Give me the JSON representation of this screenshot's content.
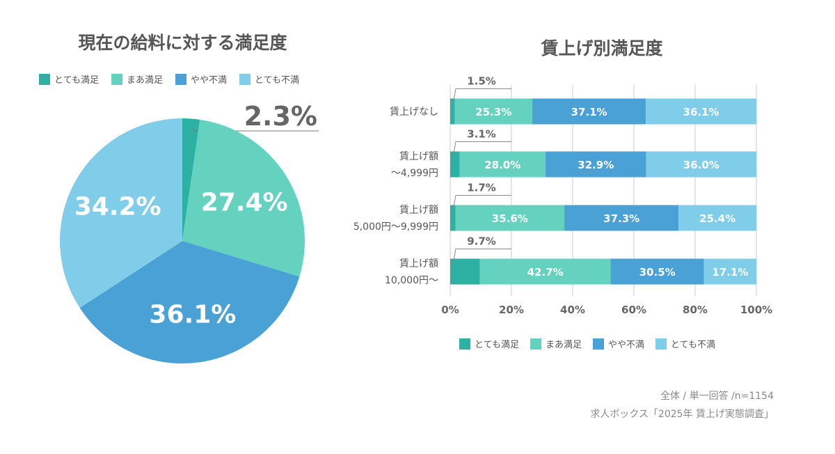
{
  "colors": {
    "very_satisfied": "#2db1a2",
    "somewhat_satisfied": "#64d2bf",
    "somewhat_dissatisfied": "#4aa1d5",
    "very_dissatisfied": "#80cdea"
  },
  "footer": {
    "line1": "全体 / 単一回答 /n=1154",
    "line2": "求人ボックス「2025年 賃上げ実態調査」"
  },
  "chart_data": [
    {
      "type": "pie",
      "title": "現在の給料に対する満足度",
      "legend_position": "top",
      "categories": [
        "とても満足",
        "まあ満足",
        "やや不満",
        "とても不満"
      ],
      "values": [
        2.3,
        27.4,
        36.1,
        34.2
      ],
      "labels": [
        "2.3%",
        "27.4%",
        "36.1%",
        "34.2%"
      ]
    },
    {
      "type": "bar",
      "orientation": "horizontal-stacked",
      "title": "賃上げ別満足度",
      "legend_position": "bottom",
      "categories": [
        [
          "賃上げなし"
        ],
        [
          "賃上げ額",
          "〜4,999円"
        ],
        [
          "賃上げ額",
          "5,000円〜9,999円"
        ],
        [
          "賃上げ額",
          "10,000円〜"
        ]
      ],
      "xlim": [
        0,
        100
      ],
      "xticks": [
        "0%",
        "20%",
        "40%",
        "60%",
        "80%",
        "100%"
      ],
      "grid": true,
      "series": [
        {
          "name": "とても満足",
          "values": [
            1.5,
            3.1,
            1.7,
            9.7
          ]
        },
        {
          "name": "まあ満足",
          "values": [
            25.3,
            28.0,
            35.6,
            42.7
          ]
        },
        {
          "name": "やや不満",
          "values": [
            37.1,
            32.9,
            37.3,
            30.5
          ]
        },
        {
          "name": "とても不満",
          "values": [
            36.1,
            36.0,
            25.4,
            17.1
          ]
        }
      ]
    }
  ]
}
